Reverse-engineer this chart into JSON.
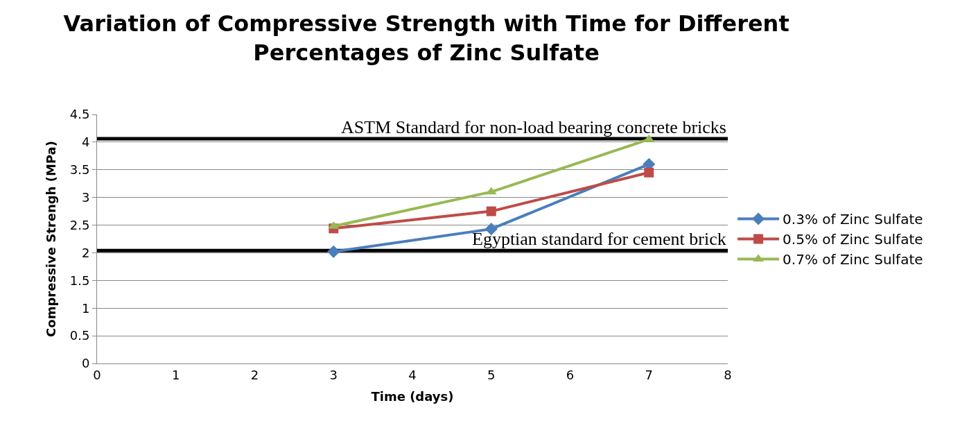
{
  "chart_data": {
    "type": "line",
    "title": "Variation of Compressive Strength with Time for Different Percentages of Zinc Sulfate",
    "xlabel": "Time (days)",
    "ylabel": "Compressive Strengh (MPa)",
    "x": [
      3,
      5,
      7
    ],
    "series": [
      {
        "name": "0.3% of Zinc Sulfate",
        "color": "#4a7ebb",
        "marker": "diamond",
        "values": [
          2.02,
          2.43,
          3.6
        ]
      },
      {
        "name": "0.5% of Zinc Sulfate",
        "color": "#be4b48",
        "marker": "square",
        "values": [
          2.44,
          2.75,
          3.45
        ]
      },
      {
        "name": "0.7% of Zinc Sulfate",
        "color": "#98b954",
        "marker": "triangle",
        "values": [
          2.48,
          3.1,
          4.05
        ]
      }
    ],
    "xlim": [
      0,
      8
    ],
    "xticks": [
      0,
      1,
      2,
      3,
      4,
      5,
      6,
      7,
      8
    ],
    "ylim": [
      0,
      4.5
    ],
    "yticks": [
      0,
      0.5,
      1,
      1.5,
      2,
      2.5,
      3,
      3.5,
      4,
      4.5
    ],
    "ref_lines": [
      {
        "axis": "y",
        "value": 4.06,
        "label": "ASTM Standard for non-load bearing concrete bricks",
        "color": "#000000"
      },
      {
        "axis": "y",
        "value": 2.04,
        "label": "Egyptian standard for cement brick",
        "color": "#000000"
      }
    ],
    "grid": "y",
    "legend": "right",
    "line_style": "solid"
  }
}
